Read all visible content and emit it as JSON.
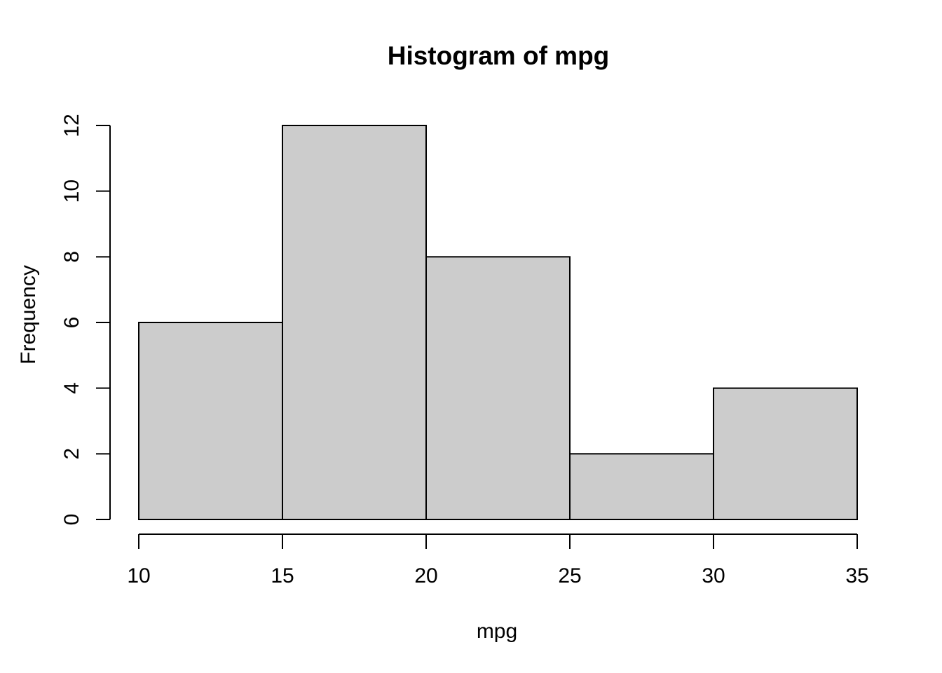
{
  "figure": {
    "background": "#FFFFFF"
  },
  "chart_data": {
    "type": "bar",
    "subtype": "histogram",
    "title": "Histogram of mpg",
    "xlabel": "mpg",
    "ylabel": "Frequency",
    "bin_edges": [
      10,
      15,
      20,
      25,
      30,
      35
    ],
    "counts": [
      6,
      12,
      8,
      2,
      4
    ],
    "x_ticks": [
      10,
      15,
      20,
      25,
      30,
      35
    ],
    "y_ticks": [
      0,
      2,
      4,
      6,
      8,
      10,
      12
    ],
    "xlim": [
      10,
      35
    ],
    "ylim": [
      0,
      12
    ],
    "grid": false,
    "legend": "none",
    "bar_fill": "#CCCCCC",
    "bar_stroke": "#000000",
    "axis_color": "#000000",
    "text_color": "#000000"
  }
}
